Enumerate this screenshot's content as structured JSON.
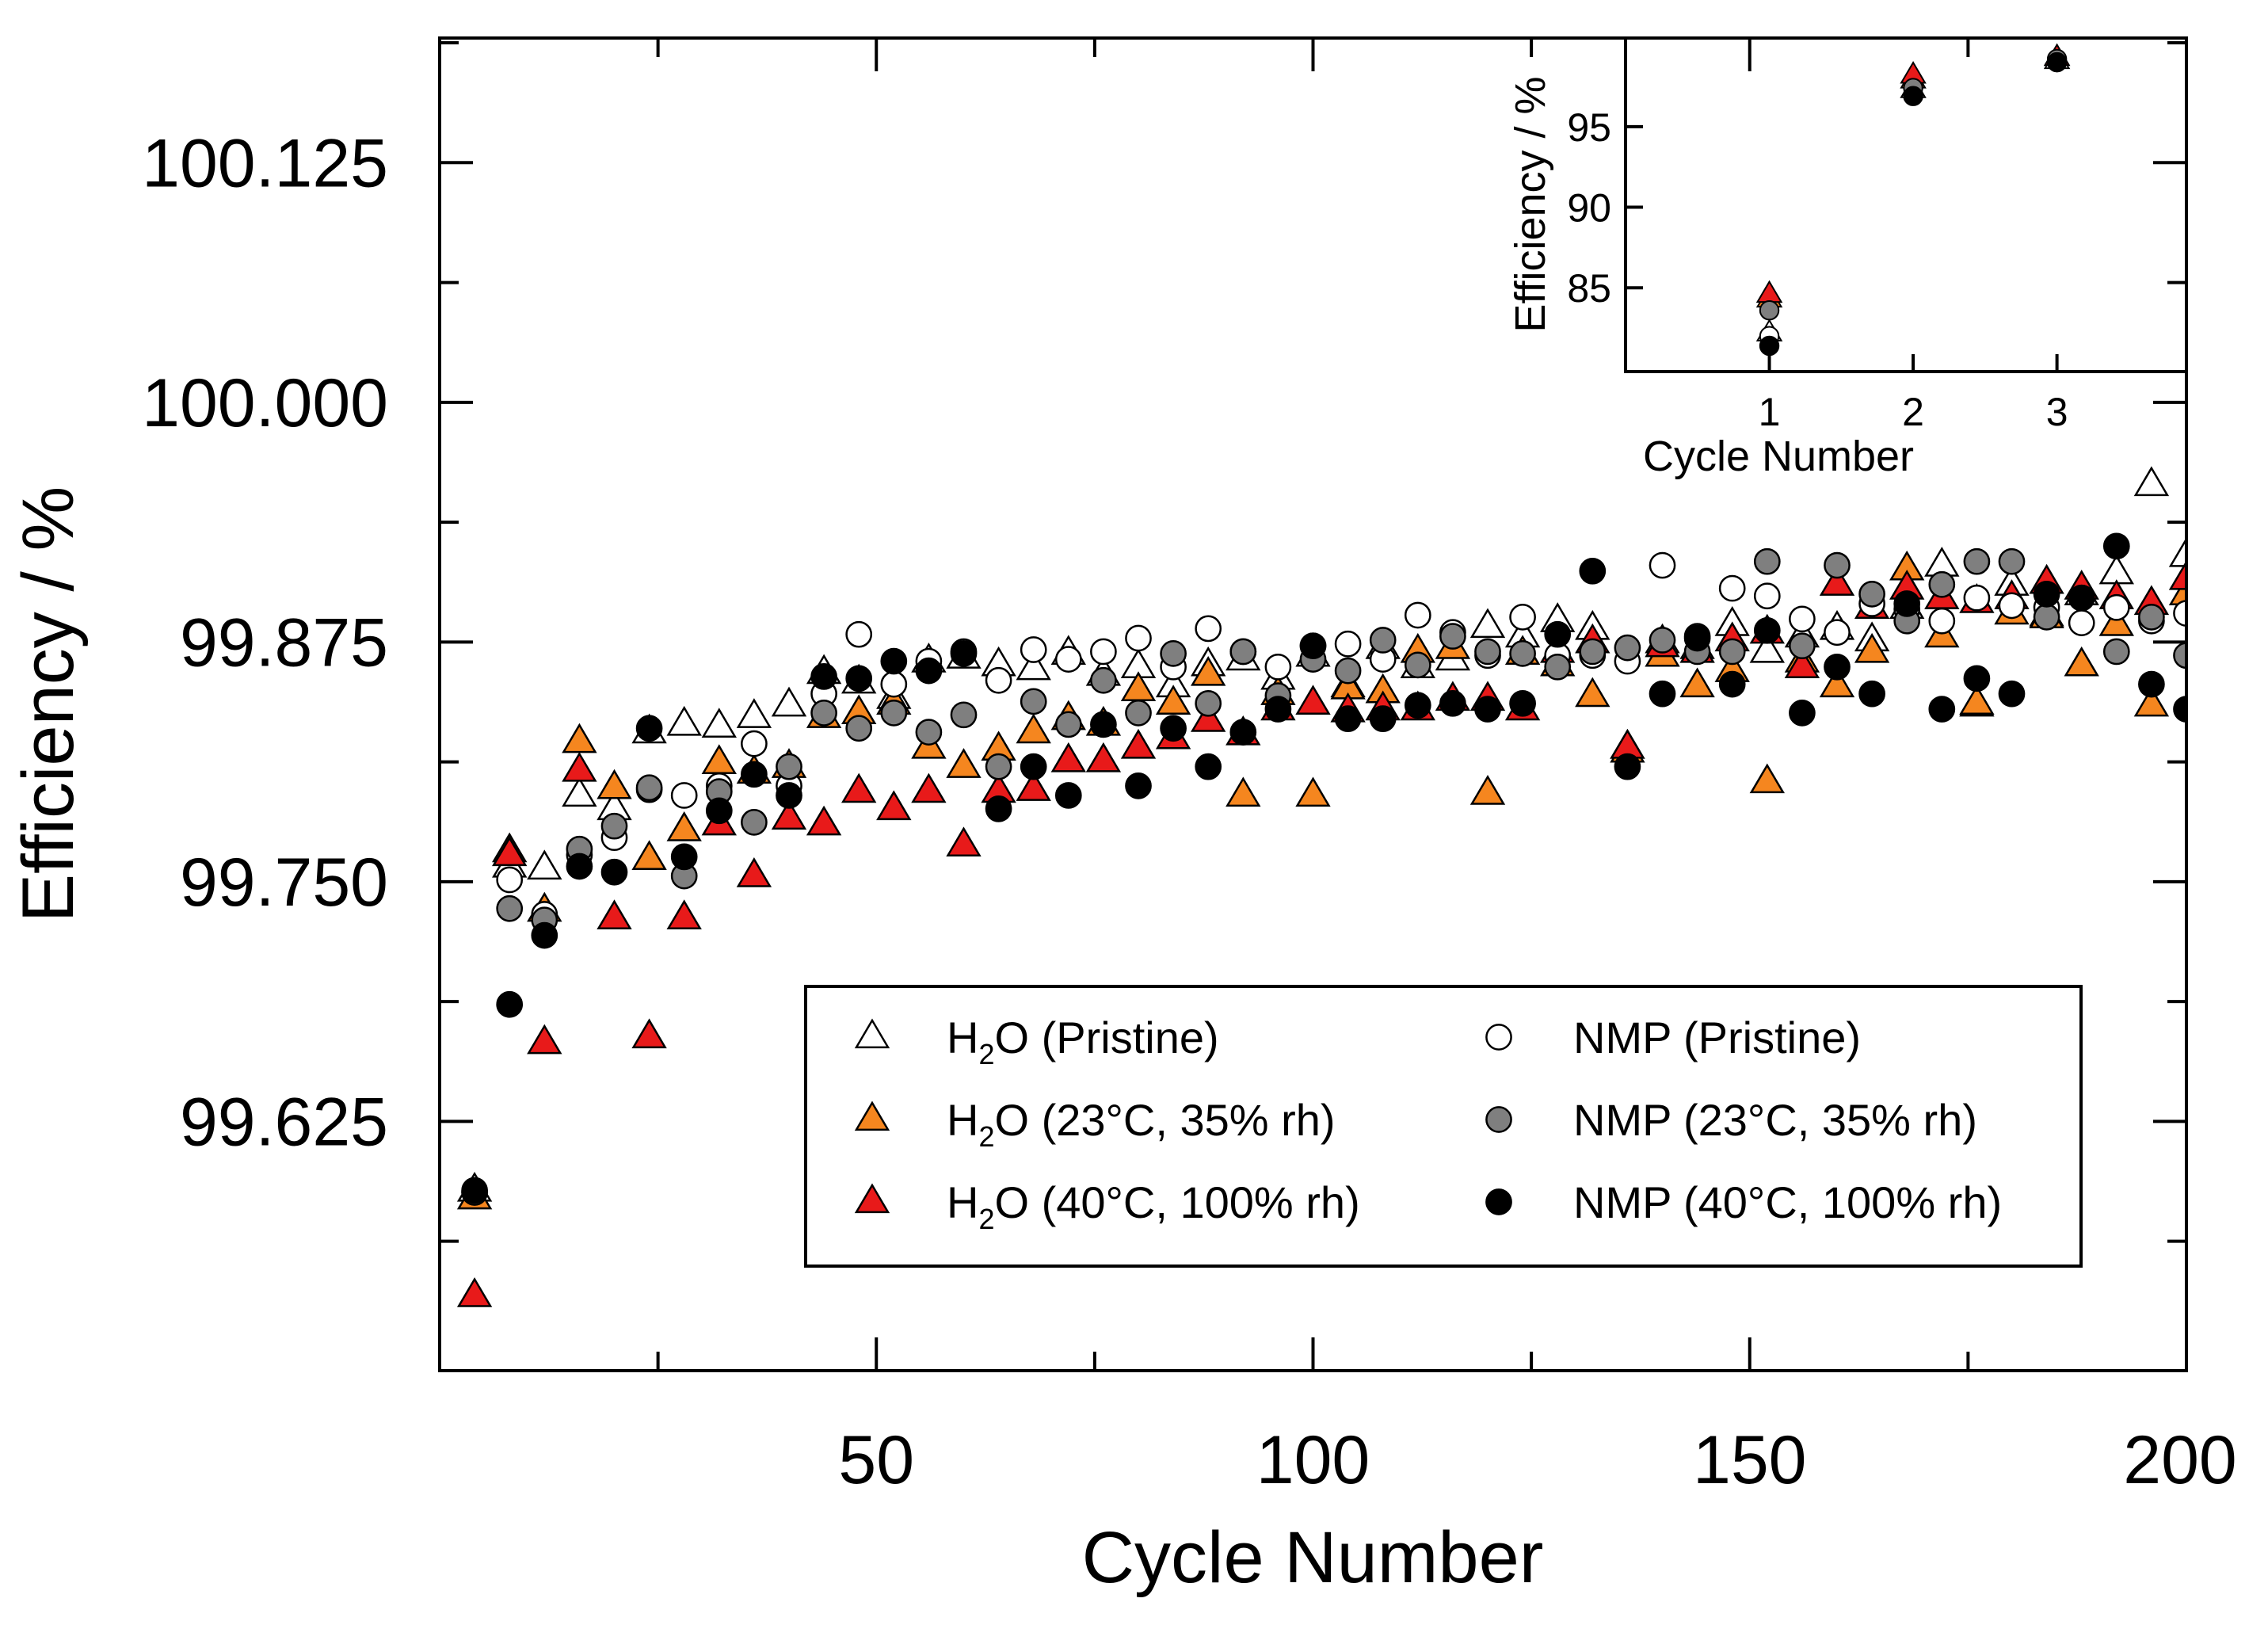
{
  "chart_data": [
    {
      "id": "main",
      "type": "scatter",
      "xlabel": "Cycle Number",
      "ylabel": "Efficiency / %",
      "xlim": [
        0,
        200
      ],
      "ylim": [
        99.495,
        100.19
      ],
      "x_major_ticks": [
        50,
        100,
        150,
        200
      ],
      "x_minor_ticks": [
        25,
        75,
        125,
        175
      ],
      "y_major_ticks": [
        99.625,
        99.75,
        99.875,
        100.0,
        100.125
      ],
      "y_minor_ticks": [
        99.5625,
        99.6875,
        99.8125,
        99.9375,
        100.0625,
        100.1875
      ],
      "y_tick_labels": [
        "99.625",
        "99.750",
        "99.875",
        "100.000",
        "100.125"
      ],
      "x_tick_labels": [
        "50",
        "100",
        "150",
        "200"
      ],
      "legend_position": "lower-right",
      "series": [
        {
          "name": "H2O (Pristine)",
          "label_main": "H",
          "label_sub": "2",
          "label_rest": "O (Pristine)",
          "marker": "triangle",
          "fill": "#ffffff",
          "x": [
            4,
            8,
            12,
            16,
            20,
            24,
            28,
            32,
            36,
            40,
            44,
            48,
            52,
            56,
            60,
            64,
            68,
            72,
            76,
            80,
            84,
            88,
            92,
            96,
            100,
            104,
            108,
            112,
            116,
            120,
            124,
            128,
            132,
            136,
            140,
            144,
            148,
            152,
            156,
            160,
            164,
            168,
            172,
            176,
            180,
            184,
            188,
            192,
            196,
            200
          ],
          "y": [
            99.589,
            99.758,
            99.757,
            99.795,
            99.788,
            99.828,
            99.832,
            99.831,
            99.836,
            99.842,
            99.859,
            99.854,
            99.846,
            99.865,
            99.867,
            99.863,
            99.861,
            99.869,
            99.858,
            99.862,
            99.852,
            99.863,
            99.866,
            99.856,
            99.868,
            99.852,
            99.872,
            99.862,
            99.866,
            99.883,
            99.878,
            99.886,
            99.882,
            99.82,
            99.875,
            99.872,
            99.884,
            99.87,
            99.878,
            99.882,
            99.876,
            99.893,
            99.915,
            99.842,
            99.905,
            99.889,
            99.9,
            99.911,
            99.957,
            99.92
          ]
        },
        {
          "name": "H2O (23°C, 35% rh)",
          "label_main": "H",
          "label_sub": "2",
          "label_rest": "O (23°C, 35% rh)",
          "marker": "triangle",
          "fill": "#f5861f",
          "x": [
            4,
            8,
            12,
            16,
            20,
            24,
            28,
            32,
            36,
            40,
            44,
            48,
            52,
            56,
            60,
            64,
            68,
            72,
            76,
            80,
            84,
            88,
            92,
            96,
            100,
            104,
            108,
            112,
            116,
            120,
            124,
            128,
            132,
            136,
            140,
            144,
            148,
            152,
            156,
            160,
            164,
            168,
            172,
            176,
            180,
            184,
            188,
            192,
            196,
            200
          ],
          "y": [
            99.585,
            99.766,
            99.735,
            99.823,
            99.799,
            99.762,
            99.777,
            99.812,
            99.807,
            99.81,
            99.836,
            99.838,
            99.843,
            99.82,
            99.81,
            99.819,
            99.828,
            99.835,
            99.832,
            99.85,
            99.843,
            99.858,
            99.795,
            99.848,
            99.795,
            99.851,
            99.849,
            99.87,
            99.872,
            99.796,
            99.869,
            99.863,
            99.847,
            99.818,
            99.868,
            99.852,
            99.86,
            99.802,
            99.865,
            99.852,
            99.87,
            99.913,
            99.878,
            99.843,
            99.89,
            99.888,
            99.863,
            99.884,
            99.842,
            99.9
          ]
        },
        {
          "name": "H2O (40°C, 100% rh)",
          "label_main": "H",
          "label_sub": "2",
          "label_rest": "O (40°C, 100% rh)",
          "marker": "triangle",
          "fill": "#e81a1a",
          "x": [
            4,
            8,
            12,
            16,
            20,
            24,
            28,
            32,
            36,
            40,
            44,
            48,
            52,
            56,
            60,
            64,
            68,
            72,
            76,
            80,
            84,
            88,
            92,
            96,
            100,
            104,
            108,
            112,
            116,
            120,
            124,
            128,
            132,
            136,
            140,
            144,
            148,
            152,
            156,
            160,
            164,
            168,
            172,
            176,
            180,
            184,
            188,
            192,
            196,
            200
          ],
          "y": [
            99.534,
            99.764,
            99.666,
            99.808,
            99.731,
            99.669,
            99.731,
            99.78,
            99.753,
            99.783,
            99.78,
            99.797,
            99.788,
            99.797,
            99.769,
            99.797,
            99.798,
            99.813,
            99.813,
            99.82,
            99.825,
            99.834,
            99.827,
            99.84,
            99.843,
            99.839,
            99.84,
            99.84,
            99.845,
            99.845,
            99.84,
            99.87,
            99.875,
            99.82,
            99.873,
            99.87,
            99.876,
            99.88,
            99.862,
            99.905,
            99.893,
            99.903,
            99.898,
            99.896,
            99.898,
            99.906,
            99.903,
            99.898,
            99.895,
            99.908
          ]
        },
        {
          "name": "NMP (Pristine)",
          "label_main": "NMP (Pristine)",
          "marker": "circle",
          "fill": "#ffffff",
          "x": [
            4,
            8,
            12,
            16,
            20,
            24,
            28,
            32,
            36,
            40,
            44,
            48,
            52,
            56,
            60,
            64,
            68,
            72,
            76,
            80,
            84,
            88,
            92,
            96,
            100,
            104,
            108,
            112,
            116,
            120,
            124,
            128,
            132,
            136,
            140,
            144,
            148,
            152,
            156,
            160,
            164,
            168,
            172,
            176,
            180,
            184,
            188,
            192,
            196,
            200
          ],
          "y": [
            99.588,
            99.751,
            99.733,
            99.764,
            99.773,
            99.798,
            99.795,
            99.8,
            99.822,
            99.8,
            99.848,
            99.879,
            99.853,
            99.865,
            99.87,
            99.855,
            99.871,
            99.866,
            99.87,
            99.877,
            99.862,
            99.882,
            99.87,
            99.862,
            99.873,
            99.874,
            99.866,
            99.889,
            99.88,
            99.868,
            99.888,
            99.868,
            99.868,
            99.865,
            99.915,
            99.878,
            99.903,
            99.899,
            99.887,
            99.88,
            99.895,
            99.892,
            99.886,
            99.898,
            99.894,
            99.893,
            99.885,
            99.893,
            99.886,
            99.89
          ]
        },
        {
          "name": "NMP (23°C, 35% rh)",
          "label_main": "NMP (23°C, 35% rh)",
          "marker": "circle",
          "fill": "#7f7f7f",
          "x": [
            4,
            8,
            12,
            16,
            20,
            24,
            28,
            32,
            36,
            40,
            44,
            48,
            52,
            56,
            60,
            64,
            68,
            72,
            76,
            80,
            84,
            88,
            92,
            96,
            100,
            104,
            108,
            112,
            116,
            120,
            124,
            128,
            132,
            136,
            140,
            144,
            148,
            152,
            156,
            160,
            164,
            168,
            172,
            176,
            180,
            184,
            188,
            192,
            196,
            200
          ],
          "y": [
            99.588,
            99.736,
            99.73,
            99.767,
            99.779,
            99.799,
            99.753,
            99.797,
            99.781,
            99.81,
            99.838,
            99.83,
            99.838,
            99.828,
            99.837,
            99.81,
            99.844,
            99.832,
            99.855,
            99.838,
            99.869,
            99.843,
            99.87,
            99.847,
            99.866,
            99.86,
            99.876,
            99.863,
            99.878,
            99.87,
            99.869,
            99.862,
            99.87,
            99.872,
            99.876,
            99.87,
            99.87,
            99.917,
            99.873,
            99.915,
            99.9,
            99.886,
            99.905,
            99.917,
            99.917,
            99.888,
            99.898,
            99.87,
            99.888,
            99.868
          ]
        },
        {
          "name": "NMP (40°C, 100% rh)",
          "label_main": "NMP (40°C, 100% rh)",
          "marker": "circle",
          "fill": "#000000",
          "x": [
            4,
            8,
            12,
            16,
            20,
            24,
            28,
            32,
            36,
            40,
            44,
            48,
            52,
            56,
            60,
            64,
            68,
            72,
            76,
            80,
            84,
            88,
            92,
            96,
            100,
            104,
            108,
            112,
            116,
            120,
            124,
            128,
            132,
            136,
            140,
            144,
            148,
            152,
            156,
            160,
            164,
            168,
            172,
            176,
            180,
            184,
            188,
            192,
            196,
            200
          ],
          "y": [
            99.589,
            99.686,
            99.722,
            99.758,
            99.755,
            99.83,
            99.763,
            99.787,
            99.806,
            99.795,
            99.857,
            99.856,
            99.865,
            99.86,
            99.869,
            99.788,
            99.81,
            99.795,
            99.832,
            99.8,
            99.83,
            99.81,
            99.828,
            99.84,
            99.873,
            99.835,
            99.835,
            99.842,
            99.843,
            99.84,
            99.843,
            99.879,
            99.912,
            99.81,
            99.848,
            99.877,
            99.853,
            99.881,
            99.838,
            99.862,
            99.848,
            99.895,
            99.84,
            99.856,
            99.848,
            99.9,
            99.898,
            99.925,
            99.853,
            99.84
          ]
        }
      ]
    },
    {
      "id": "inset",
      "type": "scatter",
      "xlabel": "Cycle Number",
      "ylabel": "Efficiency / %",
      "xlim": [
        0,
        3.9
      ],
      "ylim": [
        79.8,
        100.5
      ],
      "x_major_ticks": [
        1,
        2,
        3
      ],
      "x_tick_labels": [
        "1",
        "2",
        "3"
      ],
      "y_major_ticks": [
        85,
        90,
        95
      ],
      "y_tick_labels": [
        "85",
        "90",
        "95"
      ],
      "series": [
        {
          "name": "H2O (Pristine)",
          "marker": "triangle",
          "fill": "#ffffff",
          "x": [
            1,
            2,
            3
          ],
          "y": [
            82.2,
            97.3,
            99.1
          ]
        },
        {
          "name": "H2O (23°C, 35% rh)",
          "marker": "triangle",
          "fill": "#f5861f",
          "x": [
            1,
            2,
            3
          ],
          "y": [
            84.3,
            97.9,
            99.3
          ]
        },
        {
          "name": "H2O (40°C, 100% rh)",
          "marker": "triangle",
          "fill": "#e81a1a",
          "x": [
            1,
            2,
            3
          ],
          "y": [
            84.6,
            98.2,
            99.3
          ]
        },
        {
          "name": "NMP (Pristine)",
          "marker": "circle",
          "fill": "#ffffff",
          "x": [
            1,
            2,
            3
          ],
          "y": [
            82.0,
            97.0,
            99.0
          ]
        },
        {
          "name": "NMP (23°C, 35% rh)",
          "marker": "circle",
          "fill": "#7f7f7f",
          "x": [
            1,
            2,
            3
          ],
          "y": [
            83.6,
            97.4,
            99.2
          ]
        },
        {
          "name": "NMP (40°C, 100% rh)",
          "marker": "circle",
          "fill": "#000000",
          "x": [
            1,
            2,
            3
          ],
          "y": [
            81.4,
            96.9,
            99.0
          ]
        }
      ]
    }
  ]
}
